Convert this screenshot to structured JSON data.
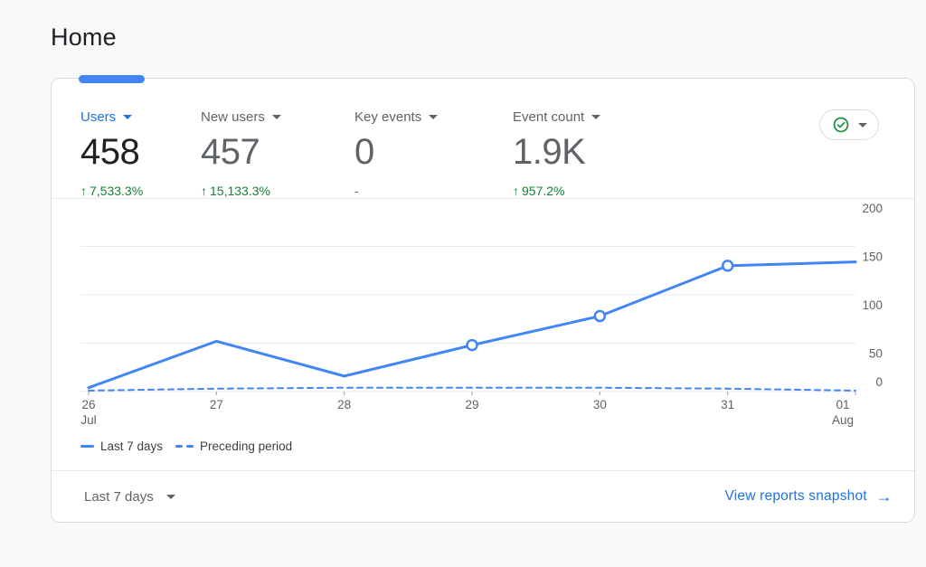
{
  "page": {
    "title": "Home"
  },
  "card": {
    "metrics": [
      {
        "label": "Users",
        "value": "458",
        "arrow": "↑",
        "change": "7,533.3%",
        "selected": true
      },
      {
        "label": "New users",
        "value": "457",
        "arrow": "↑",
        "change": "15,133.3%",
        "selected": false
      },
      {
        "label": "Key events",
        "value": "0",
        "arrow": "",
        "change": "-",
        "selected": false
      },
      {
        "label": "Event count",
        "value": "1.9K",
        "arrow": "↑",
        "change": "957.2%",
        "selected": false
      }
    ],
    "footer": {
      "date_range": "Last 7 days",
      "link_label": "View reports snapshot",
      "link_arrow": "→"
    }
  },
  "chart_data": {
    "type": "line",
    "x": [
      "26 Jul",
      "27",
      "28",
      "29",
      "30",
      "31",
      "01 Aug"
    ],
    "series": [
      {
        "name": "Last 7 days",
        "values": [
          4,
          52,
          16,
          48,
          78,
          130,
          134
        ],
        "style": "solid",
        "markers": [
          3,
          4,
          5
        ]
      },
      {
        "name": "Preceding period",
        "values": [
          1,
          3,
          4,
          4,
          4,
          3,
          1
        ],
        "style": "dashed",
        "markers": []
      }
    ],
    "title": "",
    "xlabel": "",
    "ylabel": "",
    "ylim": [
      0,
      200
    ],
    "yticks": [
      0,
      50,
      100,
      150,
      200
    ],
    "grid": true,
    "legend_position": "bottom"
  },
  "colors": {
    "accent_blue": "#1a73e8",
    "chart_blue": "#4285f4",
    "positive_green": "#188038",
    "text_dark": "#202124",
    "text_gray": "#5f6368",
    "border": "#dadce0",
    "grid": "#e8eaed",
    "tick": "#9aa0a6"
  }
}
